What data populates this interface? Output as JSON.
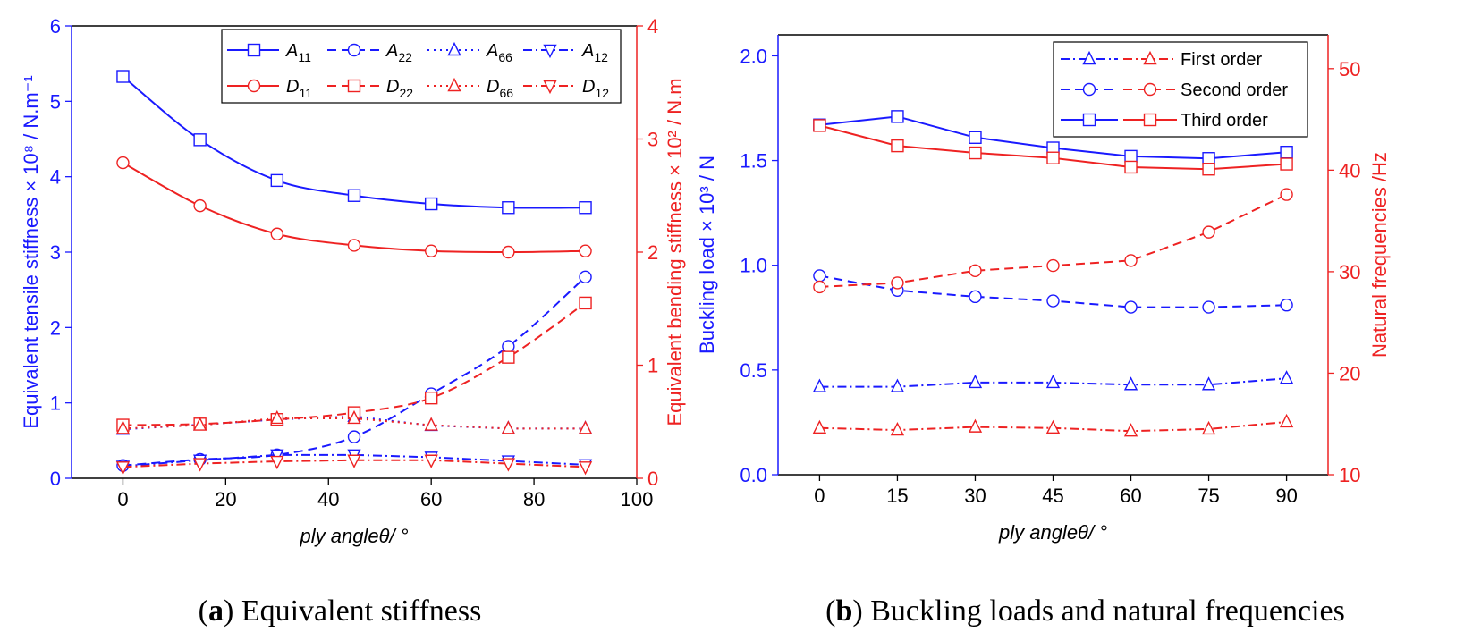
{
  "colors": {
    "blue": "#1a1aff",
    "red": "#ee2222",
    "black": "#000000"
  },
  "chart_data": [
    {
      "id": "a",
      "type": "line",
      "caption_label": "a",
      "caption_text": "Equivalent stiffness",
      "xlabel": "ply angleθ/ °",
      "ylabel_left": "Equivalent tensile stiffness × 10⁸ / N.m⁻¹",
      "ylabel_right": "Equivalent bending stiffness × 10² / N.m",
      "xlim": [
        -10,
        100
      ],
      "ylim_left": [
        0,
        6
      ],
      "ylim_right": [
        0,
        4
      ],
      "xticks": [
        0,
        20,
        40,
        60,
        80,
        100
      ],
      "yticks_left": [
        0,
        1,
        2,
        3,
        4,
        5,
        6
      ],
      "yticks_right": [
        0,
        1,
        2,
        3,
        4
      ],
      "x": [
        0,
        15,
        30,
        45,
        60,
        75,
        90
      ],
      "legend_position": "top-right",
      "series": [
        {
          "name": "A",
          "sub": "11",
          "axis": "left",
          "color": "blue",
          "dash": "solid",
          "marker": "square",
          "smooth": true,
          "values": [
            5.33,
            4.49,
            3.95,
            3.75,
            3.64,
            3.59,
            3.59
          ]
        },
        {
          "name": "A",
          "sub": "22",
          "axis": "left",
          "color": "blue",
          "dash": "dash",
          "marker": "circle",
          "smooth": true,
          "values": [
            0.17,
            0.25,
            0.31,
            0.55,
            1.12,
            1.75,
            2.67
          ]
        },
        {
          "name": "A",
          "sub": "66",
          "axis": "left",
          "color": "blue",
          "dash": "dot",
          "marker": "triangle-up",
          "smooth": false,
          "values": [
            0.65,
            0.71,
            0.78,
            0.82,
            0.7,
            0.66,
            0.66
          ]
        },
        {
          "name": "A",
          "sub": "12",
          "axis": "left",
          "color": "blue",
          "dash": "dashdot",
          "marker": "triangle-down",
          "smooth": false,
          "values": [
            0.16,
            0.24,
            0.31,
            0.31,
            0.28,
            0.23,
            0.18
          ]
        },
        {
          "name": "D",
          "sub": "11",
          "axis": "right",
          "color": "red",
          "dash": "solid",
          "marker": "circle",
          "smooth": true,
          "values": [
            2.79,
            2.41,
            2.16,
            2.06,
            2.01,
            2.0,
            2.01
          ]
        },
        {
          "name": "D",
          "sub": "22",
          "axis": "right",
          "color": "red",
          "dash": "dash",
          "marker": "square",
          "smooth": true,
          "values": [
            0.47,
            0.48,
            0.52,
            0.58,
            0.71,
            1.07,
            1.55
          ]
        },
        {
          "name": "D",
          "sub": "66",
          "axis": "right",
          "color": "red",
          "dash": "dot",
          "marker": "triangle-up",
          "smooth": false,
          "values": [
            0.44,
            0.47,
            0.53,
            0.53,
            0.47,
            0.44,
            0.44
          ]
        },
        {
          "name": "D",
          "sub": "12",
          "axis": "right",
          "color": "red",
          "dash": "dashdot",
          "marker": "triangle-down",
          "smooth": false,
          "values": [
            0.1,
            0.13,
            0.15,
            0.16,
            0.16,
            0.13,
            0.1
          ]
        }
      ]
    },
    {
      "id": "b",
      "type": "line",
      "caption_label": "b",
      "caption_text": "Buckling loads and natural frequencies",
      "xlabel": "ply angleθ/ °",
      "ylabel_left": "Buckling load × 10³ / N",
      "ylabel_right": "Natural frequencies /Hz",
      "xlim": [
        -8,
        98
      ],
      "ylim_left": [
        0,
        2.1
      ],
      "ylim_right": [
        10,
        53.33
      ],
      "xticks": [
        0,
        15,
        30,
        45,
        60,
        75,
        90
      ],
      "yticks_left": [
        0.0,
        0.5,
        1.0,
        1.5,
        2.0
      ],
      "yticks_left_labels": [
        "0.0",
        "0.5",
        "1.0",
        "1.5",
        "2.0"
      ],
      "yticks_right": [
        10,
        20,
        30,
        40,
        50
      ],
      "x": [
        0,
        15,
        30,
        45,
        60,
        75,
        90
      ],
      "legend_position": "top-right",
      "legend_entries": [
        "First order",
        "Second order",
        "Third order"
      ],
      "series": [
        {
          "name": "Buckling first order",
          "axis": "left",
          "color": "blue",
          "dash": "dashdot",
          "marker": "triangle-up",
          "values": [
            0.42,
            0.42,
            0.44,
            0.44,
            0.43,
            0.43,
            0.46
          ]
        },
        {
          "name": "Buckling second order",
          "axis": "left",
          "color": "blue",
          "dash": "dash",
          "marker": "circle",
          "values": [
            0.95,
            0.88,
            0.85,
            0.83,
            0.8,
            0.8,
            0.81
          ]
        },
        {
          "name": "Buckling third order",
          "axis": "left",
          "color": "blue",
          "dash": "solid",
          "marker": "square",
          "values": [
            1.67,
            1.71,
            1.61,
            1.56,
            1.52,
            1.51,
            1.54
          ]
        },
        {
          "name": "Frequency first order",
          "axis": "right",
          "color": "red",
          "dash": "dashdot",
          "marker": "triangle-up",
          "values": [
            14.6,
            14.4,
            14.7,
            14.6,
            14.3,
            14.5,
            15.2
          ]
        },
        {
          "name": "Frequency second order",
          "axis": "right",
          "color": "red",
          "dash": "dash",
          "marker": "circle",
          "values": [
            28.5,
            28.9,
            30.1,
            30.6,
            31.1,
            33.9,
            37.6
          ]
        },
        {
          "name": "Frequency third order",
          "axis": "right",
          "color": "red",
          "dash": "solid",
          "marker": "square",
          "values": [
            44.4,
            42.4,
            41.7,
            41.2,
            40.3,
            40.1,
            40.6
          ]
        }
      ]
    }
  ]
}
